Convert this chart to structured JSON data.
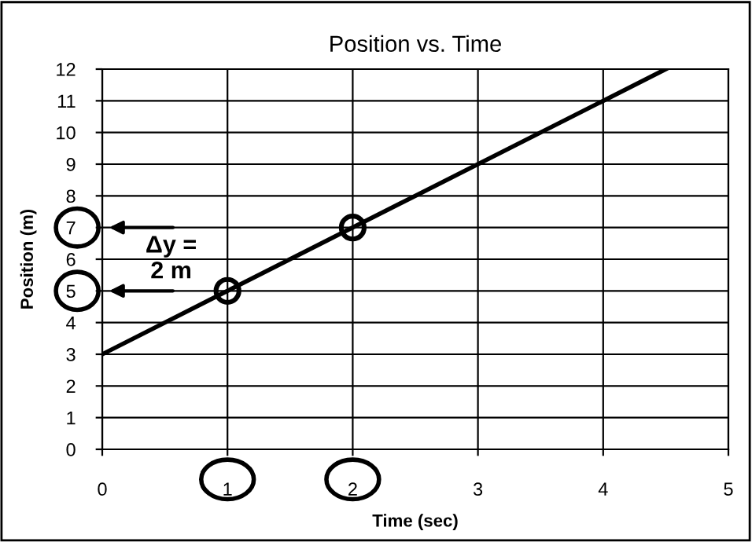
{
  "chart_data": {
    "type": "line",
    "title": "Position vs. Time",
    "xlabel": "Time (sec)",
    "ylabel": "Position (m)",
    "series": [
      {
        "color": "#000000",
        "x": [
          0,
          4.5
        ],
        "values": [
          3,
          12
        ],
        "marker": "none"
      },
      {
        "type": "scatter",
        "color": "#000000",
        "x": [
          1,
          2
        ],
        "values": [
          5,
          7
        ],
        "marker": "circle"
      }
    ],
    "xlim": [
      0,
      5
    ],
    "xticks": [
      0,
      1,
      2,
      3,
      4,
      5
    ],
    "ylim": [
      0,
      12
    ],
    "yticks": [
      0,
      1,
      2,
      3,
      4,
      5,
      6,
      7,
      8,
      9,
      10,
      11,
      12
    ],
    "grid": true,
    "annotations": [
      "Δy =\n2 m"
    ]
  }
}
